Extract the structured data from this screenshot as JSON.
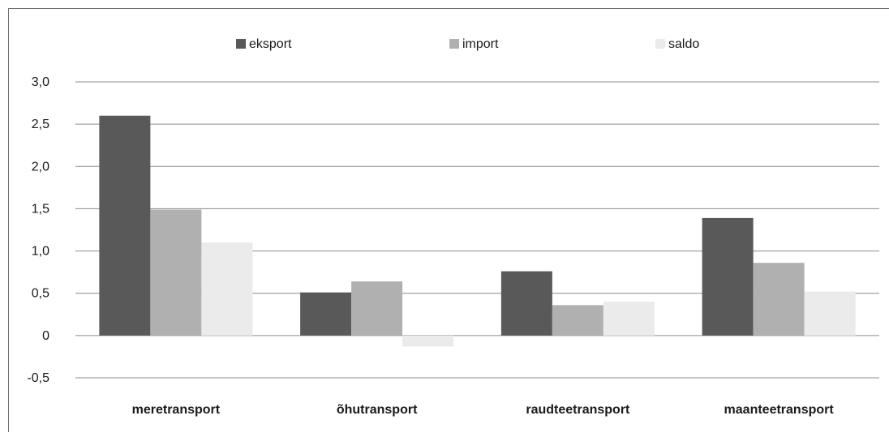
{
  "chart_data": {
    "type": "bar",
    "title": "",
    "xlabel": "",
    "ylabel": "",
    "categories": [
      "meretransport",
      "õhutransport",
      "raudteetransport",
      "maanteetransport"
    ],
    "series": [
      {
        "name": "eksport",
        "color": "#595959",
        "values": [
          2.6,
          0.51,
          0.76,
          1.39
        ]
      },
      {
        "name": "import",
        "color": "#b0b0b0",
        "values": [
          1.49,
          0.64,
          0.36,
          0.86
        ]
      },
      {
        "name": "saldo",
        "color": "#ebebeb",
        "values": [
          1.1,
          -0.13,
          0.4,
          0.52
        ]
      }
    ],
    "ylim": [
      -0.5,
      3.0
    ],
    "yticks": [
      {
        "value": 3.0,
        "label": "3,0"
      },
      {
        "value": 2.5,
        "label": "2,5"
      },
      {
        "value": 2.0,
        "label": "2,0"
      },
      {
        "value": 1.5,
        "label": "1,5"
      },
      {
        "value": 1.0,
        "label": "1,0"
      },
      {
        "value": 0.5,
        "label": "0,5"
      },
      {
        "value": 0.0,
        "label": "0"
      },
      {
        "value": -0.5,
        "label": "-0,5"
      }
    ],
    "grid": true,
    "legend_position": "top-center",
    "gridline_color": "#8c8c8c"
  }
}
